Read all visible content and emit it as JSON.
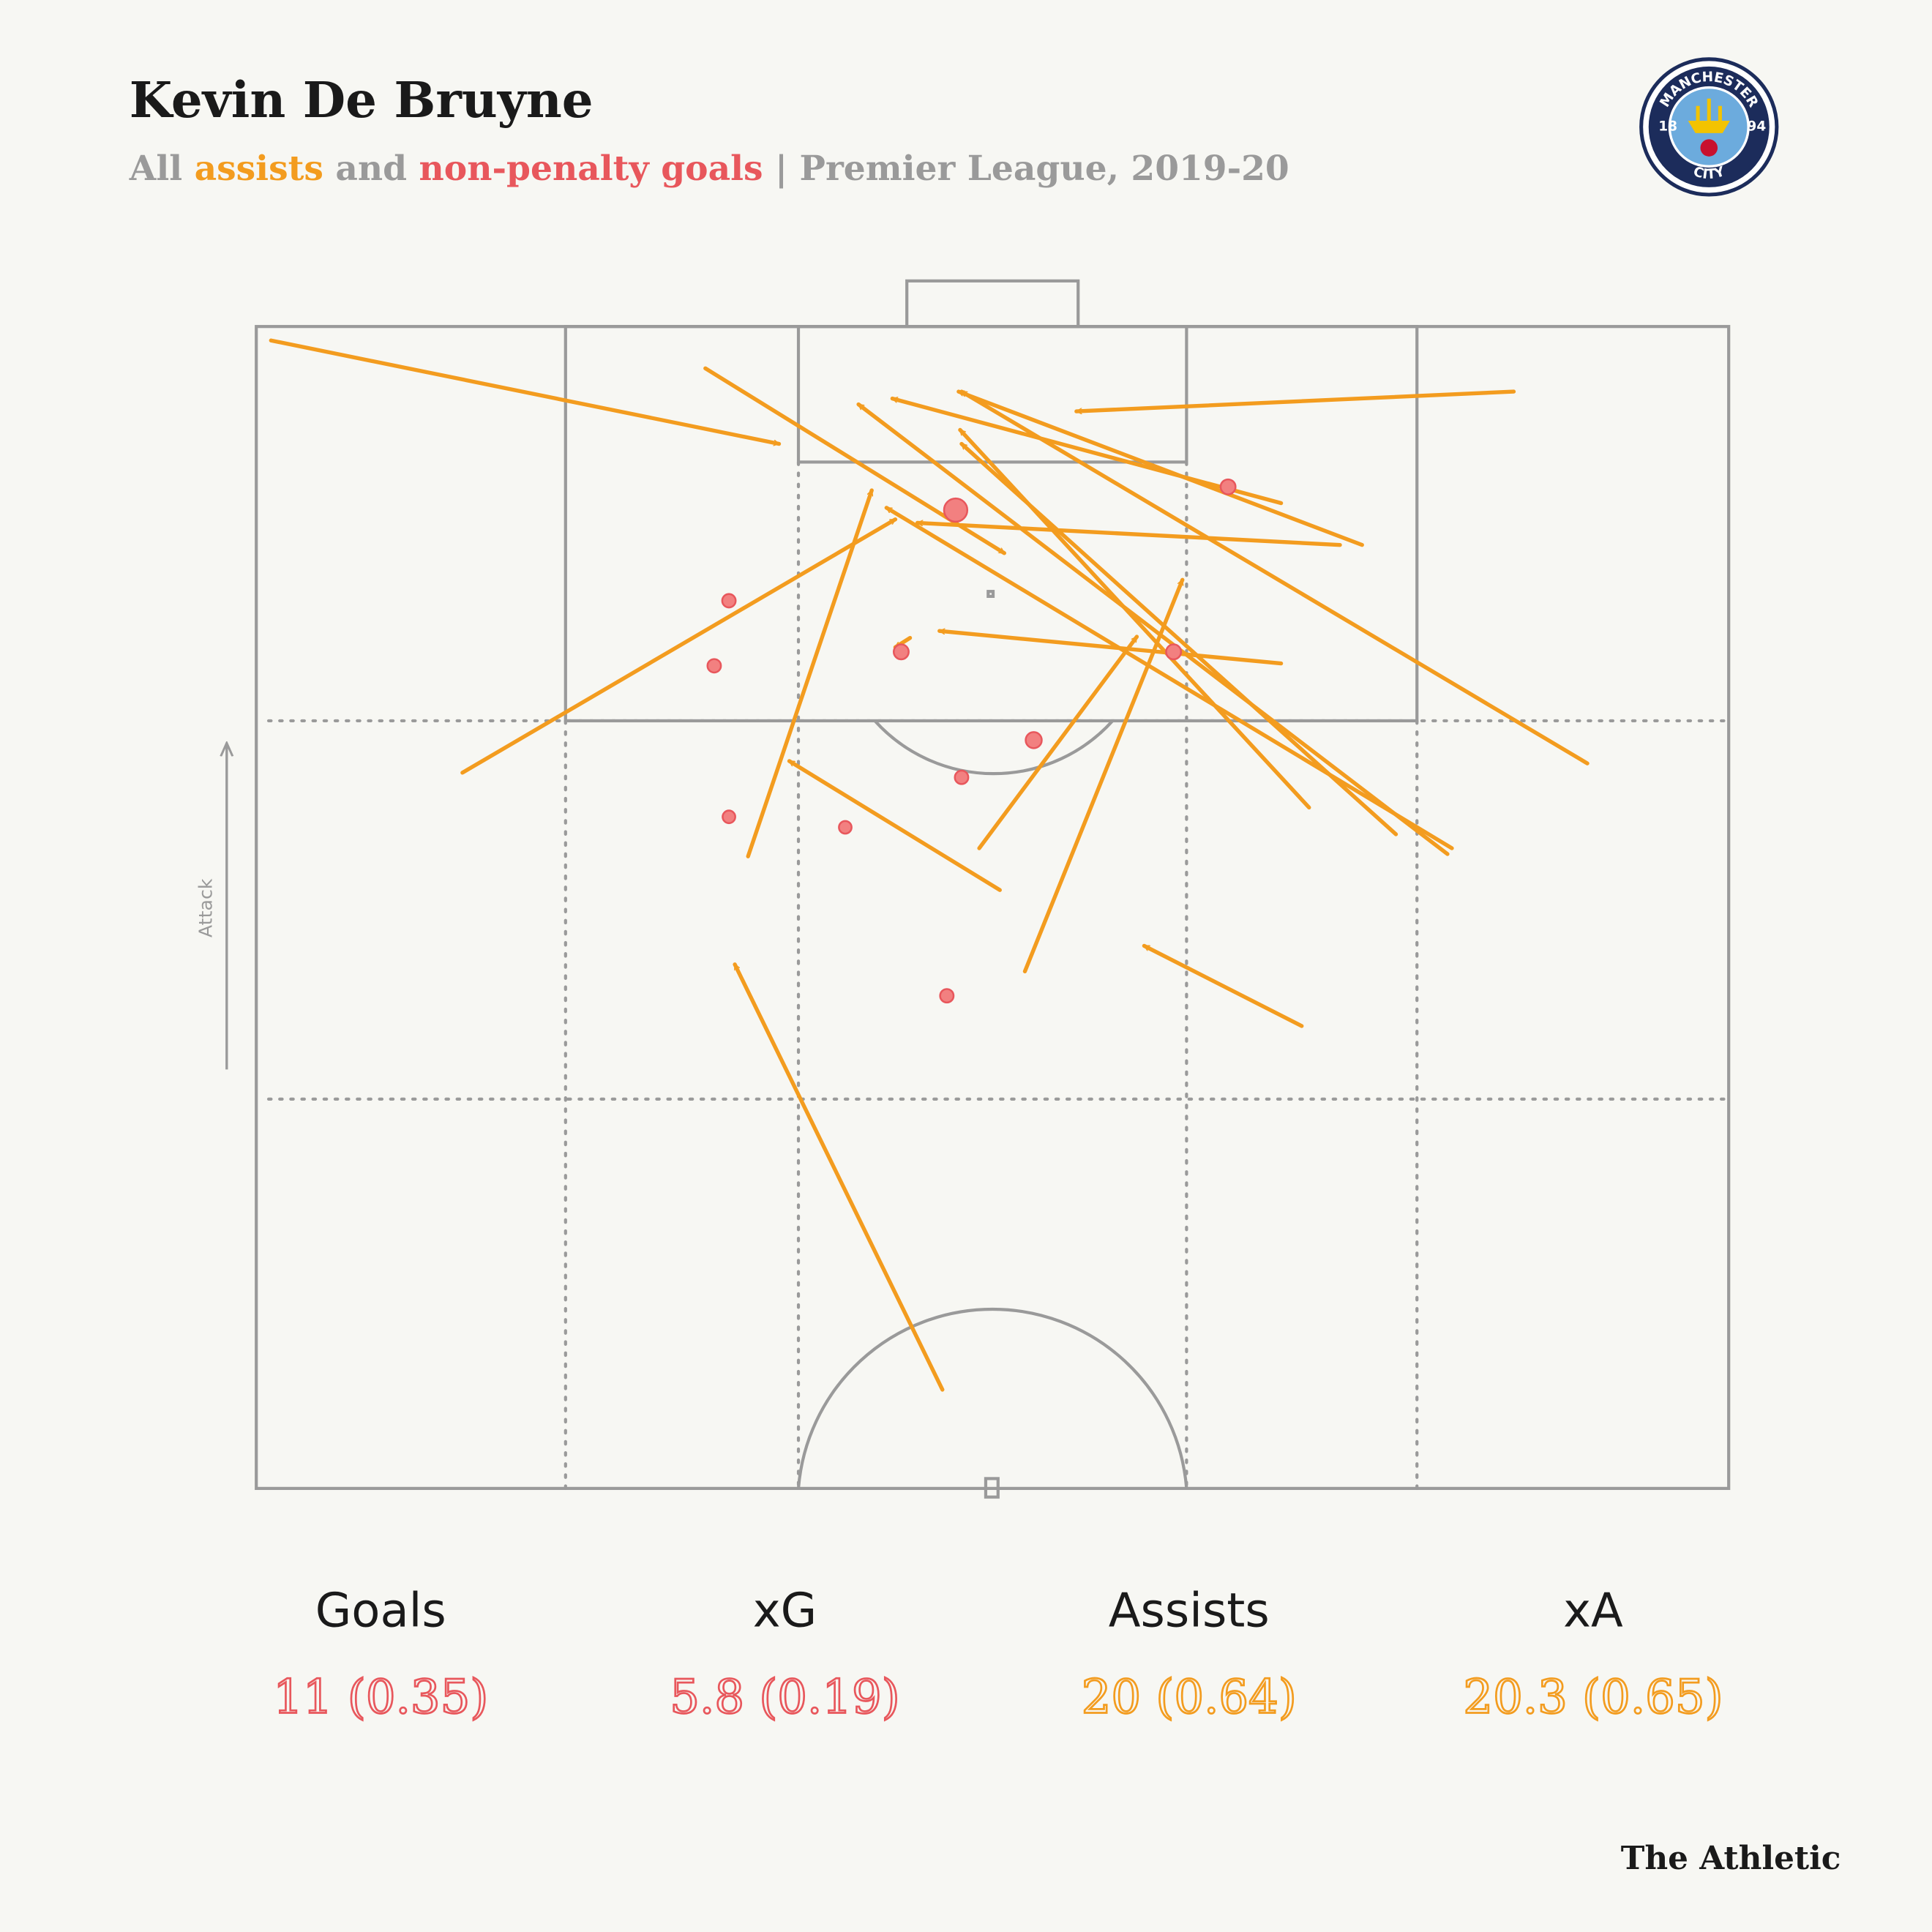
{
  "chart_data": {
    "type": "pitch",
    "title": "Kevin De Bruyne",
    "subtitle": {
      "prefix": "All",
      "join": "and",
      "suffix": "| Premier League, 2019-20"
    },
    "xlim": [
      0,
      100
    ],
    "ylim": [
      0,
      100
    ],
    "attack_label": "Attack",
    "series": [
      {
        "name": "assists",
        "color": "#f39c1f",
        "x_start": [
          1.0,
          30.5,
          85.4,
          69.6,
          75.1,
          73.6,
          90.4,
          71.5,
          77.4,
          81.2,
          80.9,
          69.6,
          14.0,
          33.4,
          49.1,
          52.2,
          50.5,
          71.0,
          46.6,
          44.4
        ],
        "y_start": [
          1.2,
          3.6,
          5.6,
          15.2,
          18.8,
          18.8,
          37.6,
          41.4,
          43.7,
          44.9,
          45.4,
          29.0,
          38.4,
          45.6,
          44.9,
          55.5,
          48.5,
          60.2,
          91.5,
          26.8
        ],
        "x_end": [
          35.5,
          50.8,
          55.7,
          43.2,
          47.7,
          44.9,
          47.9,
          47.8,
          47.9,
          42.8,
          40.9,
          46.4,
          43.4,
          41.8,
          59.8,
          62.9,
          36.2,
          60.3,
          32.5,
          43.4
        ],
        "y_end": [
          10.1,
          19.5,
          7.3,
          6.2,
          5.6,
          16.9,
          5.6,
          8.9,
          10.1,
          15.6,
          6.7,
          26.2,
          16.6,
          14.1,
          26.7,
          21.8,
          37.4,
          53.3,
          54.9,
          27.6
        ]
      },
      {
        "name": "non-penalty goals",
        "color": "#e8575c",
        "x": [
          47.5,
          66.0,
          32.1,
          31.1,
          43.8,
          62.3,
          52.8,
          47.9,
          32.1,
          40.0,
          46.9
        ],
        "y": [
          15.8,
          13.8,
          23.6,
          29.2,
          28.0,
          28.0,
          35.6,
          38.8,
          42.2,
          43.1,
          57.6
        ],
        "xg": [
          0.7,
          0.1,
          0.05,
          0.05,
          0.1,
          0.1,
          0.15,
          0.05,
          0.03,
          0.03,
          0.05
        ]
      }
    ],
    "stats": [
      {
        "label": "Goals",
        "value": "11 (0.35)",
        "color": "#e8575c"
      },
      {
        "label": "xG",
        "value": "5.8 (0.19)",
        "color": "#e8575c"
      },
      {
        "label": "Assists",
        "value": "20 (0.64)",
        "color": "#f39c1f"
      },
      {
        "label": "xA",
        "value": "20.3 (0.65)",
        "color": "#f39c1f"
      }
    ]
  },
  "logo": {
    "top": "MANCHESTER",
    "bottom": "CITY",
    "left": "18",
    "right": "94"
  },
  "brand": "The Athletic"
}
